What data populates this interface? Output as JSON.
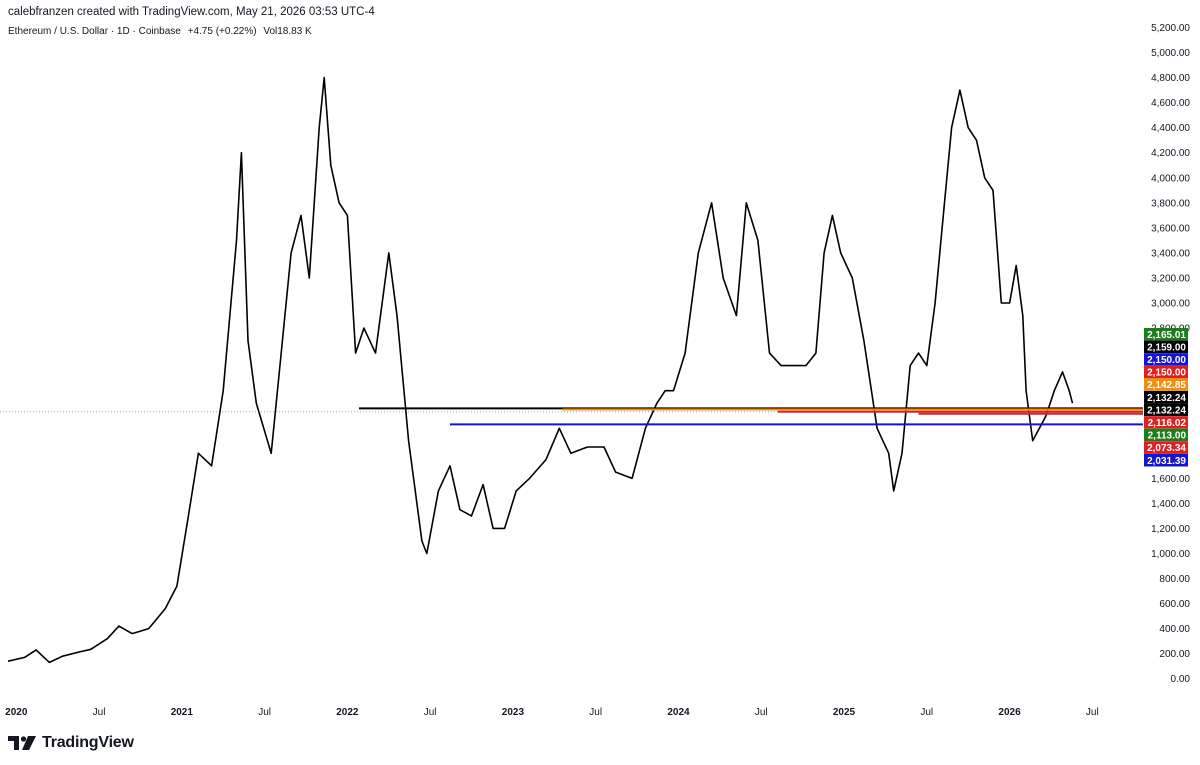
{
  "header": {
    "created_by": "calebfranzen created with TradingView.com, May 21, 2026 03:53 UTC-4",
    "symbol": "Ethereum / U.S. Dollar · 1D · Coinbase",
    "change": "+4.75 (+0.22%)",
    "volume": "Vol18.83 K"
  },
  "footer": {
    "logo_text": "TradingView",
    "logo_icon": "tradingview-logo-icon"
  },
  "colors": {
    "candle": "#000000",
    "guide": "#9aa0aa",
    "green": "#1b7d1b",
    "black": "#000000",
    "blue": "#1414d6",
    "red": "#e02020",
    "orange": "#f0900a"
  },
  "chart_data": {
    "type": "line",
    "title": "Ethereum / U.S. Dollar · 1D · Coinbase",
    "xlabel": "",
    "ylabel": "",
    "x_ticks": [
      "2020",
      "Jul",
      "2021",
      "Jul",
      "2022",
      "Jul",
      "2023",
      "Jul",
      "2024",
      "Jul",
      "2025",
      "Jul",
      "2026",
      "Jul"
    ],
    "x_tick_years": [
      2020.0,
      2020.5,
      2021.0,
      2021.5,
      2022.0,
      2022.5,
      2023.0,
      2023.5,
      2024.0,
      2024.5,
      2025.0,
      2025.5,
      2026.0,
      2026.5
    ],
    "y_ticks": [
      "5,200.00",
      "5,000.00",
      "4,800.00",
      "4,600.00",
      "4,400.00",
      "4,200.00",
      "4,000.00",
      "3,800.00",
      "3,600.00",
      "3,400.00",
      "3,200.00",
      "3,000.00",
      "2,800.00",
      "1,600.00",
      "1,400.00",
      "1,200.00",
      "1,000.00",
      "800.00",
      "600.00",
      "400.00",
      "200.00",
      "0.00"
    ],
    "ylim": [
      -90,
      5260
    ],
    "xlim": [
      2019.95,
      2026.8
    ],
    "series": [
      {
        "values": [
          [
            2019.95,
            140
          ],
          [
            2020.05,
            170
          ],
          [
            2020.12,
            230
          ],
          [
            2020.2,
            130
          ],
          [
            2020.28,
            180
          ],
          [
            2020.37,
            210
          ],
          [
            2020.45,
            235
          ],
          [
            2020.55,
            320
          ],
          [
            2020.62,
            420
          ],
          [
            2020.7,
            360
          ],
          [
            2020.8,
            400
          ],
          [
            2020.9,
            560
          ],
          [
            2020.97,
            740
          ],
          [
            2021.04,
            1300
          ],
          [
            2021.1,
            1800
          ],
          [
            2021.18,
            1700
          ],
          [
            2021.25,
            2300
          ],
          [
            2021.33,
            3500
          ],
          [
            2021.36,
            4200
          ],
          [
            2021.4,
            2700
          ],
          [
            2021.45,
            2200
          ],
          [
            2021.54,
            1800
          ],
          [
            2021.6,
            2600
          ],
          [
            2021.66,
            3400
          ],
          [
            2021.72,
            3700
          ],
          [
            2021.77,
            3200
          ],
          [
            2021.83,
            4400
          ],
          [
            2021.86,
            4800
          ],
          [
            2021.9,
            4100
          ],
          [
            2021.95,
            3800
          ],
          [
            2022.0,
            3700
          ],
          [
            2022.05,
            2600
          ],
          [
            2022.1,
            2800
          ],
          [
            2022.17,
            2600
          ],
          [
            2022.25,
            3400
          ],
          [
            2022.3,
            2900
          ],
          [
            2022.37,
            1900
          ],
          [
            2022.45,
            1100
          ],
          [
            2022.48,
            1000
          ],
          [
            2022.55,
            1500
          ],
          [
            2022.62,
            1700
          ],
          [
            2022.68,
            1350
          ],
          [
            2022.75,
            1300
          ],
          [
            2022.82,
            1550
          ],
          [
            2022.88,
            1200
          ],
          [
            2022.95,
            1200
          ],
          [
            2023.02,
            1500
          ],
          [
            2023.1,
            1600
          ],
          [
            2023.2,
            1750
          ],
          [
            2023.28,
            2000
          ],
          [
            2023.35,
            1800
          ],
          [
            2023.45,
            1850
          ],
          [
            2023.55,
            1850
          ],
          [
            2023.62,
            1650
          ],
          [
            2023.72,
            1600
          ],
          [
            2023.8,
            2000
          ],
          [
            2023.87,
            2200
          ],
          [
            2023.92,
            2300
          ],
          [
            2023.97,
            2300
          ],
          [
            2024.04,
            2600
          ],
          [
            2024.12,
            3400
          ],
          [
            2024.2,
            3800
          ],
          [
            2024.27,
            3200
          ],
          [
            2024.35,
            2900
          ],
          [
            2024.41,
            3800
          ],
          [
            2024.48,
            3500
          ],
          [
            2024.55,
            2600
          ],
          [
            2024.62,
            2500
          ],
          [
            2024.7,
            2500
          ],
          [
            2024.77,
            2500
          ],
          [
            2024.83,
            2600
          ],
          [
            2024.88,
            3400
          ],
          [
            2024.93,
            3700
          ],
          [
            2024.98,
            3400
          ],
          [
            2025.05,
            3200
          ],
          [
            2025.12,
            2700
          ],
          [
            2025.2,
            2000
          ],
          [
            2025.27,
            1800
          ],
          [
            2025.3,
            1500
          ],
          [
            2025.35,
            1800
          ],
          [
            2025.4,
            2500
          ],
          [
            2025.45,
            2600
          ],
          [
            2025.5,
            2500
          ],
          [
            2025.55,
            3000
          ],
          [
            2025.6,
            3700
          ],
          [
            2025.65,
            4400
          ],
          [
            2025.7,
            4700
          ],
          [
            2025.75,
            4400
          ],
          [
            2025.8,
            4300
          ],
          [
            2025.85,
            4000
          ],
          [
            2025.9,
            3900
          ],
          [
            2025.95,
            3000
          ],
          [
            2026.0,
            3000
          ],
          [
            2026.04,
            3300
          ],
          [
            2026.08,
            2900
          ],
          [
            2026.1,
            2300
          ],
          [
            2026.14,
            1900
          ],
          [
            2026.18,
            2000
          ],
          [
            2026.22,
            2100
          ],
          [
            2026.27,
            2300
          ],
          [
            2026.32,
            2450
          ],
          [
            2026.36,
            2300
          ],
          [
            2026.38,
            2200
          ]
        ]
      }
    ],
    "levels": [
      {
        "label": "2,165.01",
        "value": 2165.01,
        "color": "green"
      },
      {
        "label": "2,159.00",
        "value": 2159.0,
        "color": "black"
      },
      {
        "label": "2,150.00",
        "value": 2150.0,
        "color": "blue"
      },
      {
        "label": "2,150.00",
        "value": 2150.0,
        "color": "red"
      },
      {
        "label": "2,142.85",
        "value": 2142.85,
        "color": "orange"
      },
      {
        "label": "2,132.24",
        "value": 2132.24,
        "color": "black"
      },
      {
        "label": "2,132.24",
        "value": 2132.24,
        "color": "black"
      },
      {
        "label": "2,116.02",
        "value": 2116.02,
        "color": "red"
      },
      {
        "label": "2,113.00",
        "value": 2113.0,
        "color": "green"
      },
      {
        "label": "2,073.34",
        "value": 2073.34,
        "color": "red"
      },
      {
        "label": "2,031.39",
        "value": 2031.39,
        "color": "blue"
      }
    ],
    "horizontal_lines": [
      {
        "value": 2159.0,
        "start": 2022.07,
        "color": "black"
      },
      {
        "value": 2150.0,
        "start": 2023.3,
        "color": "orange"
      },
      {
        "value": 2132.24,
        "start": 2024.6,
        "color": "red"
      },
      {
        "value": 2116.02,
        "start": 2025.45,
        "color": "red"
      },
      {
        "value": 2031.39,
        "start": 2022.62,
        "color": "blue"
      }
    ],
    "current_price_guide": 2132.24
  }
}
